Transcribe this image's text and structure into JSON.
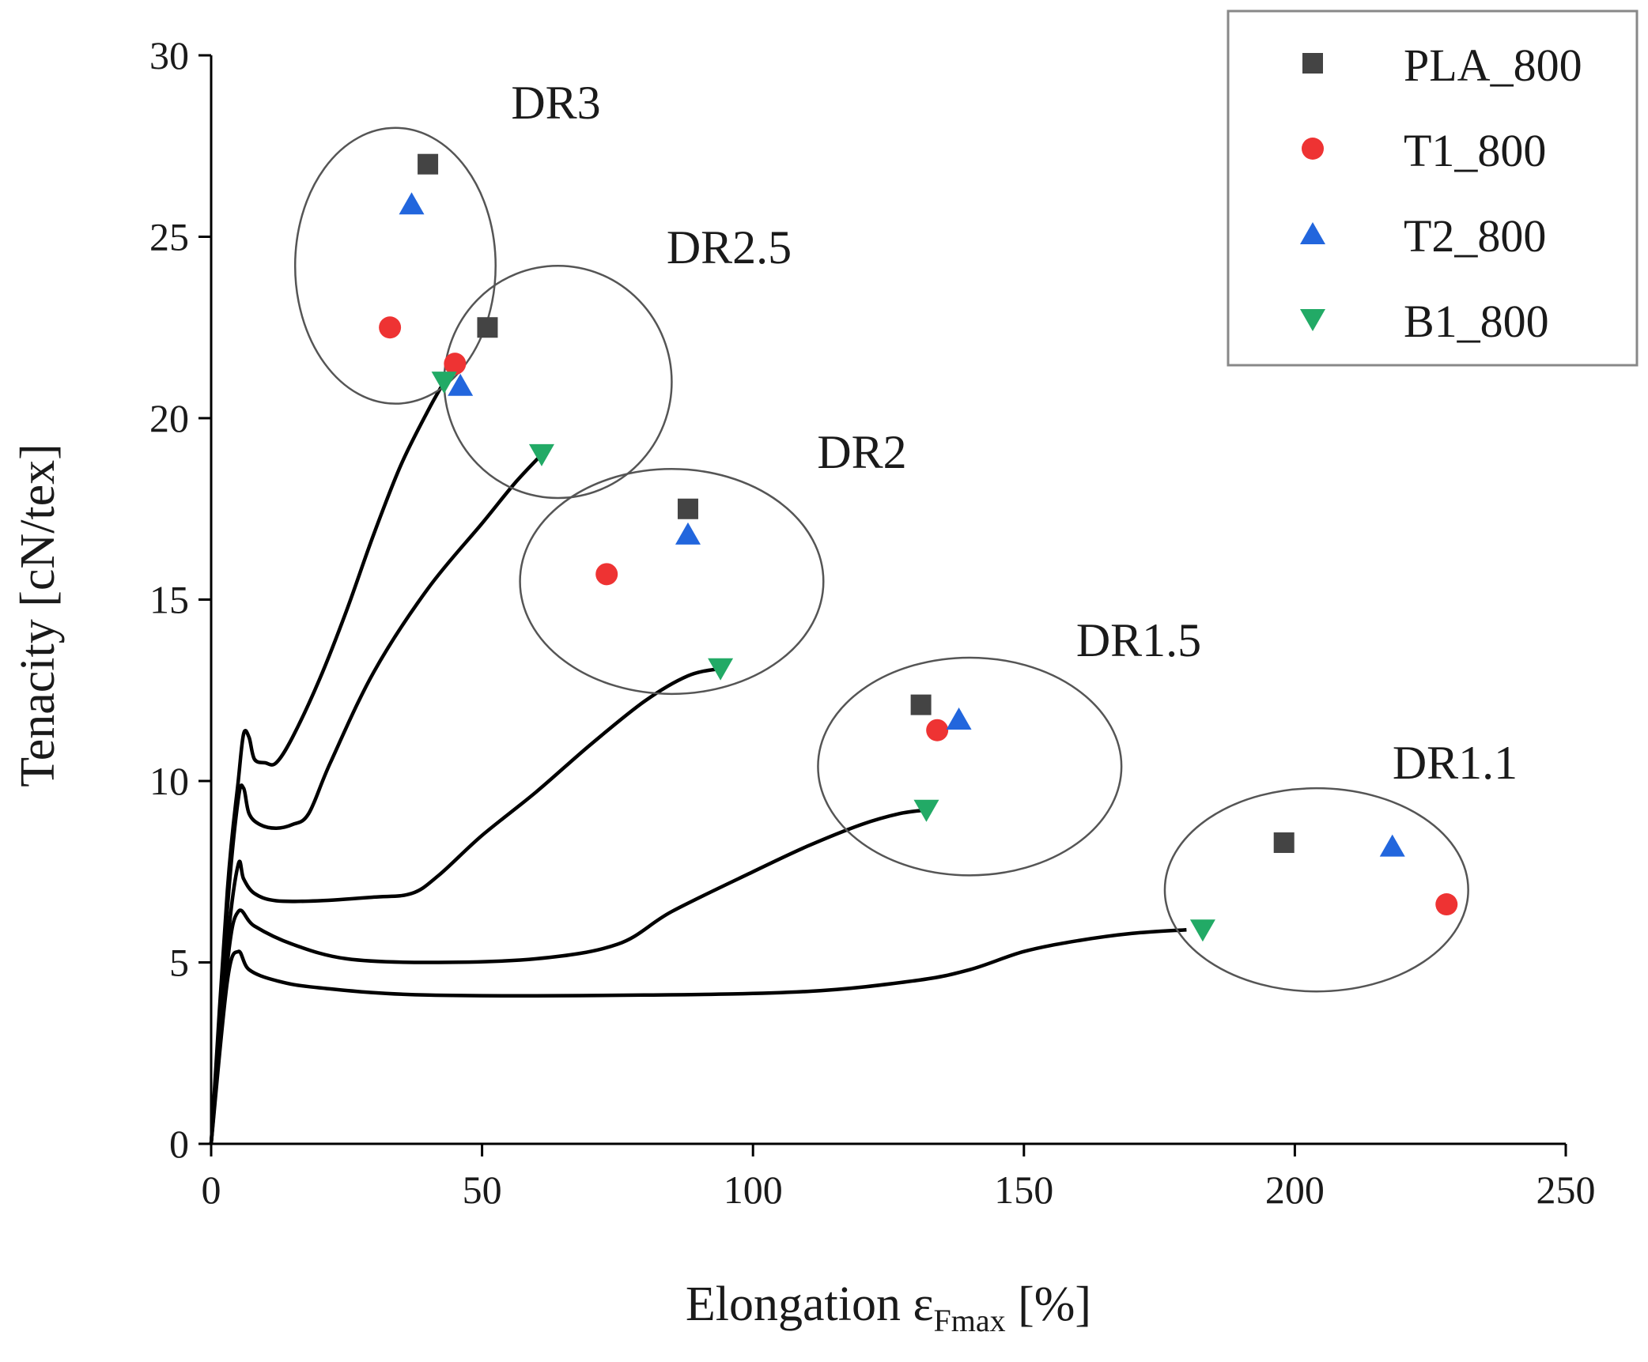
{
  "chart_data": {
    "type": "scatter",
    "title": "",
    "xlabel": "Elongation ε",
    "xlabel_subscript": "Fmax",
    "xlabel_unit": " [%]",
    "ylabel": "Tenacity [cN/tex]",
    "xlim": [
      0,
      250
    ],
    "ylim": [
      0,
      30
    ],
    "xticks": [
      0,
      50,
      100,
      150,
      200,
      250
    ],
    "yticks": [
      0,
      5,
      10,
      15,
      20,
      25,
      30
    ],
    "grid": false,
    "legend_position": "top-right",
    "series": [
      {
        "name": "PLA_800",
        "marker": "square",
        "color": "#444444",
        "points": [
          [
            40,
            27.0
          ],
          [
            51,
            22.5
          ],
          [
            88,
            17.5
          ],
          [
            131,
            12.1
          ],
          [
            198,
            8.3
          ]
        ]
      },
      {
        "name": "T1_800",
        "marker": "circle",
        "color": "#ee3333",
        "points": [
          [
            33,
            22.5
          ],
          [
            45,
            21.5
          ],
          [
            73,
            15.7
          ],
          [
            134,
            11.4
          ],
          [
            228,
            6.6
          ]
        ]
      },
      {
        "name": "T2_800",
        "marker": "triangle-up",
        "color": "#2266dd",
        "points": [
          [
            37,
            25.9
          ],
          [
            46,
            20.9
          ],
          [
            88,
            16.8
          ],
          [
            138,
            11.7
          ],
          [
            218,
            8.2
          ]
        ]
      },
      {
        "name": "B1_800",
        "marker": "triangle-down",
        "color": "#22aa66",
        "points": [
          [
            43,
            21.0
          ],
          [
            61,
            19.0
          ],
          [
            94,
            13.1
          ],
          [
            132,
            9.2
          ],
          [
            183,
            5.9
          ]
        ]
      }
    ],
    "curves": [
      {
        "name": "DR3",
        "points": [
          [
            0,
            0
          ],
          [
            3,
            7
          ],
          [
            5,
            10
          ],
          [
            6,
            11.3
          ],
          [
            7,
            11.2
          ],
          [
            8,
            10.6
          ],
          [
            10,
            10.5
          ],
          [
            12,
            10.5
          ],
          [
            15,
            11.2
          ],
          [
            20,
            12.8
          ],
          [
            25,
            14.7
          ],
          [
            30,
            16.8
          ],
          [
            35,
            18.7
          ],
          [
            40,
            20.2
          ],
          [
            43,
            21.0
          ]
        ]
      },
      {
        "name": "DR2.5",
        "points": [
          [
            0,
            0
          ],
          [
            3,
            6.5
          ],
          [
            5,
            9.5
          ],
          [
            6,
            9.8
          ],
          [
            7,
            9.1
          ],
          [
            9,
            8.8
          ],
          [
            12,
            8.7
          ],
          [
            15,
            8.8
          ],
          [
            18,
            9.1
          ],
          [
            22,
            10.5
          ],
          [
            30,
            13.0
          ],
          [
            40,
            15.3
          ],
          [
            50,
            17.1
          ],
          [
            56,
            18.2
          ],
          [
            61,
            19.0
          ]
        ]
      },
      {
        "name": "DR2",
        "points": [
          [
            0,
            0
          ],
          [
            3,
            5.5
          ],
          [
            5,
            7.7
          ],
          [
            6,
            7.3
          ],
          [
            8,
            6.9
          ],
          [
            12,
            6.7
          ],
          [
            20,
            6.7
          ],
          [
            30,
            6.8
          ],
          [
            37,
            6.9
          ],
          [
            42,
            7.4
          ],
          [
            50,
            8.5
          ],
          [
            60,
            9.7
          ],
          [
            70,
            11.0
          ],
          [
            80,
            12.2
          ],
          [
            88,
            12.9
          ],
          [
            94,
            13.1
          ]
        ]
      },
      {
        "name": "DR1.5",
        "points": [
          [
            0,
            0
          ],
          [
            3,
            5
          ],
          [
            5,
            6.4
          ],
          [
            8,
            6.0
          ],
          [
            15,
            5.5
          ],
          [
            25,
            5.1
          ],
          [
            40,
            5.0
          ],
          [
            60,
            5.1
          ],
          [
            75,
            5.5
          ],
          [
            85,
            6.4
          ],
          [
            100,
            7.5
          ],
          [
            110,
            8.2
          ],
          [
            120,
            8.8
          ],
          [
            127,
            9.1
          ],
          [
            132,
            9.2
          ]
        ]
      },
      {
        "name": "DR1.1",
        "points": [
          [
            0,
            0
          ],
          [
            3,
            4.5
          ],
          [
            5,
            5.3
          ],
          [
            7,
            4.8
          ],
          [
            12,
            4.5
          ],
          [
            20,
            4.3
          ],
          [
            40,
            4.1
          ],
          [
            80,
            4.1
          ],
          [
            110,
            4.2
          ],
          [
            130,
            4.5
          ],
          [
            140,
            4.8
          ],
          [
            150,
            5.3
          ],
          [
            160,
            5.6
          ],
          [
            170,
            5.8
          ],
          [
            180,
            5.9
          ]
        ]
      }
    ],
    "groups": [
      {
        "label": "DR3",
        "cx": 34,
        "cy": 24.2,
        "rx": 18.5,
        "ry": 3.8
      },
      {
        "label": "DR2.5",
        "cx": 64,
        "cy": 21.0,
        "rx": 21,
        "ry": 3.2
      },
      {
        "label": "DR2",
        "cx": 85,
        "cy": 15.5,
        "rx": 28,
        "ry": 3.1
      },
      {
        "label": "DR1.5",
        "cx": 140,
        "cy": 10.4,
        "rx": 28,
        "ry": 3.0
      },
      {
        "label": "DR1.1",
        "cx": 204,
        "cy": 7.0,
        "rx": 28,
        "ry": 2.8
      }
    ]
  }
}
